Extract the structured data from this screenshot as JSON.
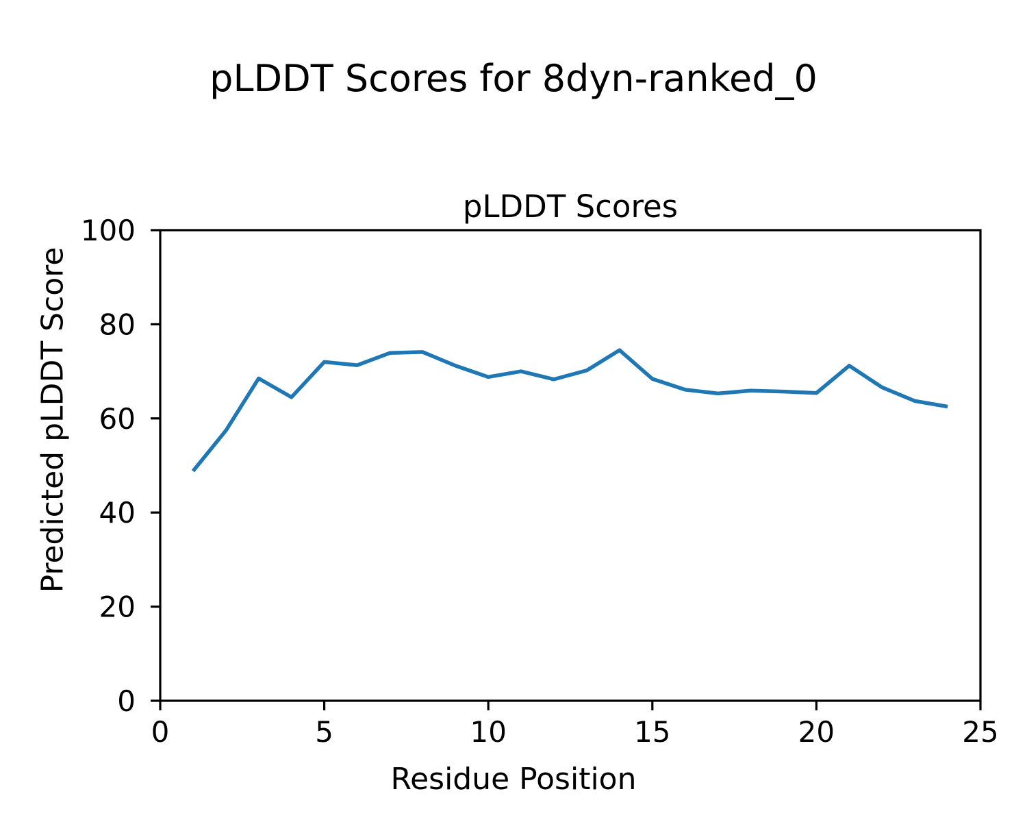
{
  "figure": {
    "suptitle": "pLDDT Scores for 8dyn-ranked_0"
  },
  "chart_data": {
    "type": "line",
    "title": "pLDDT Scores",
    "xlabel": "Residue Position",
    "ylabel": "Predicted pLDDT Score",
    "xlim": [
      0,
      25
    ],
    "ylim": [
      0,
      100
    ],
    "xticks": [
      0,
      5,
      10,
      15,
      20,
      25
    ],
    "yticks": [
      0,
      20,
      40,
      60,
      80,
      100
    ],
    "grid": false,
    "legend": "none",
    "line_color": "#1f77b4",
    "series": [
      {
        "name": "pLDDT",
        "x": [
          1,
          2,
          3,
          4,
          5,
          6,
          7,
          8,
          9,
          10,
          11,
          12,
          13,
          14,
          15,
          16,
          17,
          18,
          19,
          20,
          21,
          22,
          23,
          24
        ],
        "y": [
          48.8,
          57.4,
          68.5,
          64.5,
          72.0,
          71.3,
          73.9,
          74.1,
          71.2,
          68.8,
          70.0,
          68.3,
          70.2,
          74.5,
          68.4,
          66.1,
          65.3,
          65.9,
          65.7,
          65.4,
          71.2,
          66.6,
          63.7,
          62.5
        ]
      }
    ]
  }
}
